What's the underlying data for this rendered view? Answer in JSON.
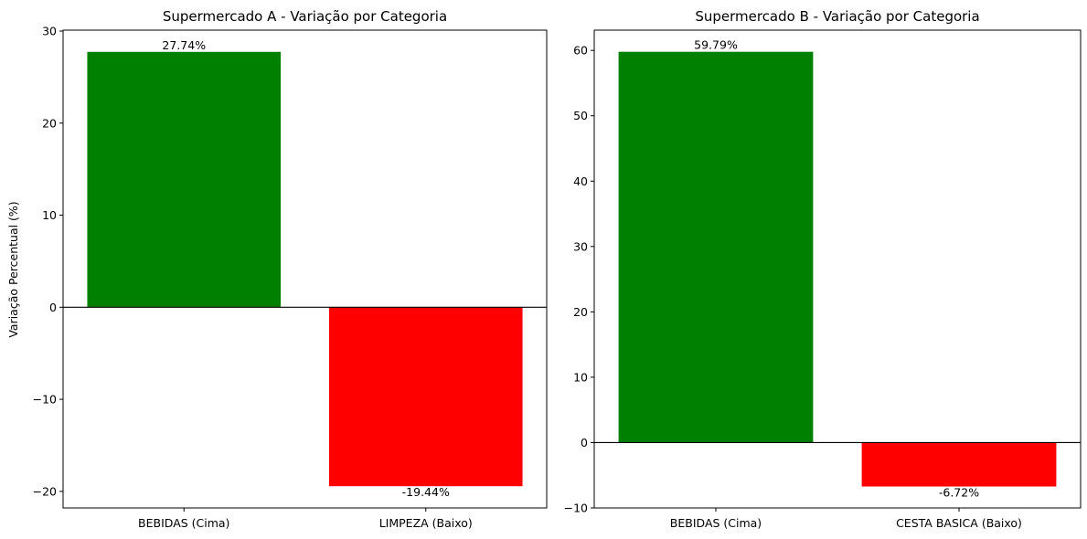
{
  "chart_data": [
    {
      "type": "bar",
      "title": "Supermercado A - Variação por Categoria",
      "xlabel": "",
      "ylabel": "Variação Percentual (%)",
      "categories": [
        "BEBIDAS (Cima)",
        "LIMPEZA (Baixo)"
      ],
      "values": [
        27.74,
        -19.44
      ],
      "value_labels": [
        "27.74%",
        "-19.44%"
      ],
      "bar_colors": [
        "#008000",
        "#ff0000"
      ],
      "ylim": [
        -21.8,
        30.1
      ],
      "yticks": [
        -20,
        -10,
        0,
        10,
        20,
        30
      ],
      "ytick_labels": [
        "−20",
        "−10",
        "0",
        "10",
        "20",
        "30"
      ],
      "zero_line": true,
      "grid": false
    },
    {
      "type": "bar",
      "title": "Supermercado B - Variação por Categoria",
      "xlabel": "",
      "ylabel": "",
      "categories": [
        "BEBIDAS (Cima)",
        "CESTA BASICA (Baixo)"
      ],
      "values": [
        59.79,
        -6.72
      ],
      "value_labels": [
        "59.79%",
        "-6.72%"
      ],
      "bar_colors": [
        "#008000",
        "#ff0000"
      ],
      "ylim": [
        -10,
        63.1
      ],
      "yticks": [
        -10,
        0,
        10,
        20,
        30,
        40,
        50,
        60
      ],
      "ytick_labels": [
        "−10",
        "0",
        "10",
        "20",
        "30",
        "40",
        "50",
        "60"
      ],
      "zero_line": true,
      "grid": false
    }
  ]
}
